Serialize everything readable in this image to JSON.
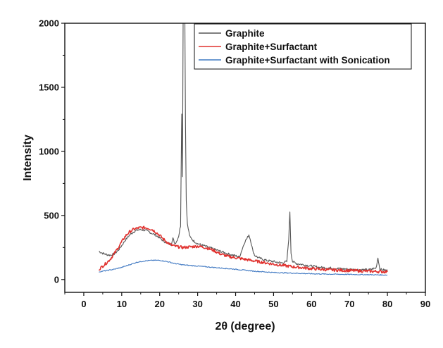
{
  "chart_data": {
    "type": "line",
    "title": "",
    "xlabel": "2θ (degree)",
    "ylabel": "Intensity",
    "xlim": [
      -5,
      90
    ],
    "ylim": [
      -100,
      2000
    ],
    "xticks": [
      0,
      10,
      20,
      30,
      40,
      50,
      60,
      70,
      80,
      90
    ],
    "yticks": [
      0,
      500,
      1000,
      1500,
      2000
    ],
    "grid": false,
    "legend_position": "top-right",
    "series": [
      {
        "name": "Graphite",
        "color": "#555555",
        "x": [
          4,
          5,
          6,
          7,
          8,
          9,
          10,
          11,
          12,
          13,
          14,
          15,
          16,
          17,
          18,
          19,
          20,
          21,
          22,
          23,
          23.5,
          24,
          24.5,
          25,
          25.5,
          25.8,
          26,
          26.2,
          26.4,
          26.6,
          26.8,
          27,
          27.3,
          27.7,
          28,
          29,
          30,
          32,
          34,
          36,
          38,
          40,
          41,
          42,
          42.5,
          43,
          43.5,
          44,
          44.5,
          45,
          46,
          48,
          50,
          52,
          53.5,
          54,
          54.3,
          54.6,
          55,
          56,
          58,
          60,
          62,
          65,
          70,
          75,
          77,
          77.5,
          78,
          79,
          80
        ],
        "y": [
          220,
          205,
          195,
          190,
          200,
          225,
          265,
          310,
          345,
          370,
          385,
          390,
          385,
          375,
          360,
          345,
          325,
          300,
          285,
          275,
          320,
          280,
          300,
          340,
          420,
          1300,
          800,
          2200,
          2200,
          2200,
          1200,
          620,
          430,
          370,
          330,
          300,
          280,
          260,
          240,
          220,
          200,
          185,
          175,
          260,
          300,
          320,
          350,
          300,
          230,
          190,
          170,
          150,
          140,
          130,
          140,
          320,
          530,
          210,
          140,
          125,
          115,
          105,
          95,
          90,
          80,
          75,
          90,
          170,
          80,
          75,
          70
        ]
      },
      {
        "name": "Graphite+Surfactant",
        "color": "#e0322f",
        "x": [
          4,
          5,
          6,
          7,
          8,
          9,
          10,
          11,
          12,
          13,
          14,
          15,
          16,
          17,
          18,
          19,
          20,
          21,
          22,
          23,
          24,
          25,
          26,
          28,
          30,
          32,
          34,
          36,
          38,
          40,
          42,
          44,
          46,
          48,
          50,
          55,
          60,
          65,
          70,
          75,
          80
        ],
        "y": [
          80,
          105,
          130,
          160,
          200,
          245,
          295,
          340,
          370,
          390,
          400,
          405,
          405,
          400,
          390,
          370,
          345,
          315,
          290,
          270,
          260,
          255,
          250,
          255,
          260,
          250,
          230,
          200,
          180,
          170,
          160,
          150,
          140,
          130,
          120,
          100,
          85,
          75,
          70,
          65,
          60
        ]
      },
      {
        "name": "Graphite+Surfactant with Sonication",
        "color": "#3f78c2",
        "x": [
          4,
          6,
          8,
          10,
          12,
          14,
          16,
          18,
          20,
          22,
          24,
          26,
          28,
          30,
          32,
          34,
          36,
          38,
          40,
          45,
          50,
          55,
          60,
          65,
          70,
          75,
          80
        ],
        "y": [
          60,
          70,
          80,
          95,
          115,
          135,
          145,
          150,
          150,
          140,
          125,
          115,
          110,
          105,
          100,
          95,
          90,
          85,
          80,
          65,
          55,
          50,
          45,
          42,
          40,
          38,
          35
        ]
      }
    ]
  }
}
